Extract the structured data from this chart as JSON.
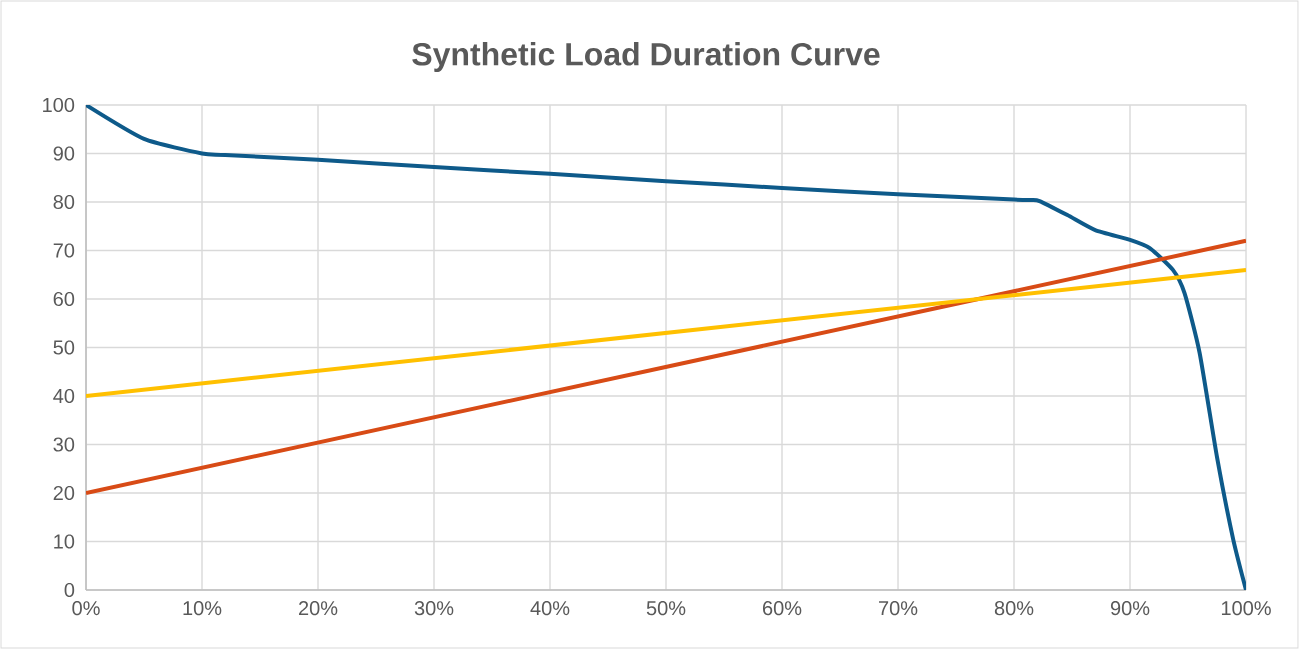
{
  "chart_data": {
    "type": "line",
    "title": "Synthetic Load Duration Curve",
    "xlim": [
      0,
      100
    ],
    "ylim": [
      0,
      100
    ],
    "xticks": [
      {
        "value": 0,
        "label": "0%"
      },
      {
        "value": 10,
        "label": "10%"
      },
      {
        "value": 20,
        "label": "20%"
      },
      {
        "value": 30,
        "label": "30%"
      },
      {
        "value": 40,
        "label": "40%"
      },
      {
        "value": 50,
        "label": "50%"
      },
      {
        "value": 60,
        "label": "60%"
      },
      {
        "value": 70,
        "label": "70%"
      },
      {
        "value": 80,
        "label": "80%"
      },
      {
        "value": 90,
        "label": "90%"
      },
      {
        "value": 100,
        "label": "100%"
      }
    ],
    "yticks": [
      0,
      10,
      20,
      30,
      40,
      50,
      60,
      70,
      80,
      90,
      100
    ],
    "grid": true,
    "marker": "none",
    "line_style": "solid",
    "series": [
      {
        "color": "#0e5a8a",
        "x": [
          0,
          5,
          10,
          12,
          20,
          30,
          40,
          50,
          60,
          70,
          80,
          81.4,
          82.2,
          84.6,
          87,
          90,
          91.7,
          93.7,
          94.7,
          96,
          97.5,
          98.9,
          100
        ],
        "values": [
          100,
          93,
          90,
          89.7,
          88.7,
          87.2,
          85.8,
          84.3,
          82.9,
          81.6,
          80.5,
          80.4,
          80.2,
          77.3,
          74.2,
          72.2,
          70.5,
          66,
          61.2,
          48.9,
          27.4,
          10.4,
          0
        ]
      },
      {
        "color": "#d84b16",
        "x": [
          0,
          100
        ],
        "values": [
          20,
          72
        ]
      },
      {
        "color": "#ffc000",
        "x": [
          0,
          100
        ],
        "values": [
          40,
          66
        ]
      }
    ]
  }
}
